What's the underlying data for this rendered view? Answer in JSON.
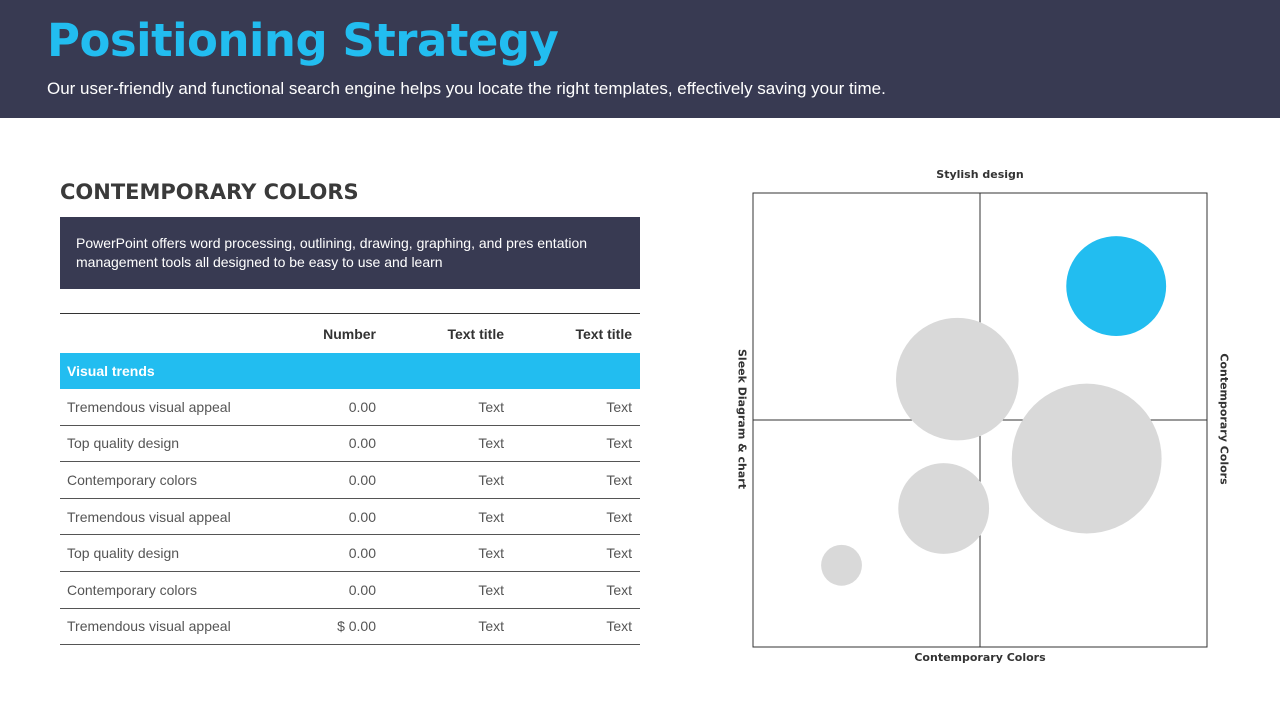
{
  "header": {
    "title": "Positioning Strategy",
    "subtitle": "Our user-friendly and functional search engine helps you locate the right templates, effectively saving your time."
  },
  "section": {
    "title": "CONTEMPORARY COLORS",
    "description": "PowerPoint offers word processing, outlining, drawing, graphing, and pres entation management tools all designed to be easy to use and learn"
  },
  "table": {
    "headers": [
      "",
      "Number",
      "Text title",
      "Text title"
    ],
    "group_label": "Visual trends",
    "rows": [
      [
        "Tremendous visual appeal",
        "0.00",
        "Text",
        "Text"
      ],
      [
        "Top quality design",
        "0.00",
        "Text",
        "Text"
      ],
      [
        "Contemporary colors",
        "0.00",
        "Text",
        "Text"
      ],
      [
        "Tremendous visual appeal",
        "0.00",
        "Text",
        "Text"
      ],
      [
        "Top quality design",
        "0.00",
        "Text",
        "Text"
      ],
      [
        "Contemporary colors",
        "0.00",
        "Text",
        "Text"
      ],
      [
        "Tremendous visual appeal",
        "$ 0.00",
        "Text",
        "Text"
      ]
    ]
  },
  "chart_data": {
    "type": "scatter",
    "axis_labels": {
      "top": "Stylish design",
      "bottom": "Contemporary Colors",
      "left": "Sleek Diagram & chart",
      "right": "Contemporary Colors"
    },
    "xlim": [
      -1,
      1
    ],
    "ylim": [
      -1,
      1
    ],
    "bubbles": [
      {
        "x": 0.6,
        "y": 0.59,
        "r": 0.22,
        "color": "#22bdf0"
      },
      {
        "x": -0.1,
        "y": 0.18,
        "r": 0.27,
        "color": "#d9d9d9"
      },
      {
        "x": 0.47,
        "y": -0.17,
        "r": 0.33,
        "color": "#d9d9d9"
      },
      {
        "x": -0.16,
        "y": -0.39,
        "r": 0.2,
        "color": "#d9d9d9"
      },
      {
        "x": -0.61,
        "y": -0.64,
        "r": 0.09,
        "color": "#d9d9d9"
      }
    ],
    "colors": {
      "highlight": "#22bdf0",
      "neutral": "#d9d9d9",
      "frame": "#333333"
    }
  }
}
